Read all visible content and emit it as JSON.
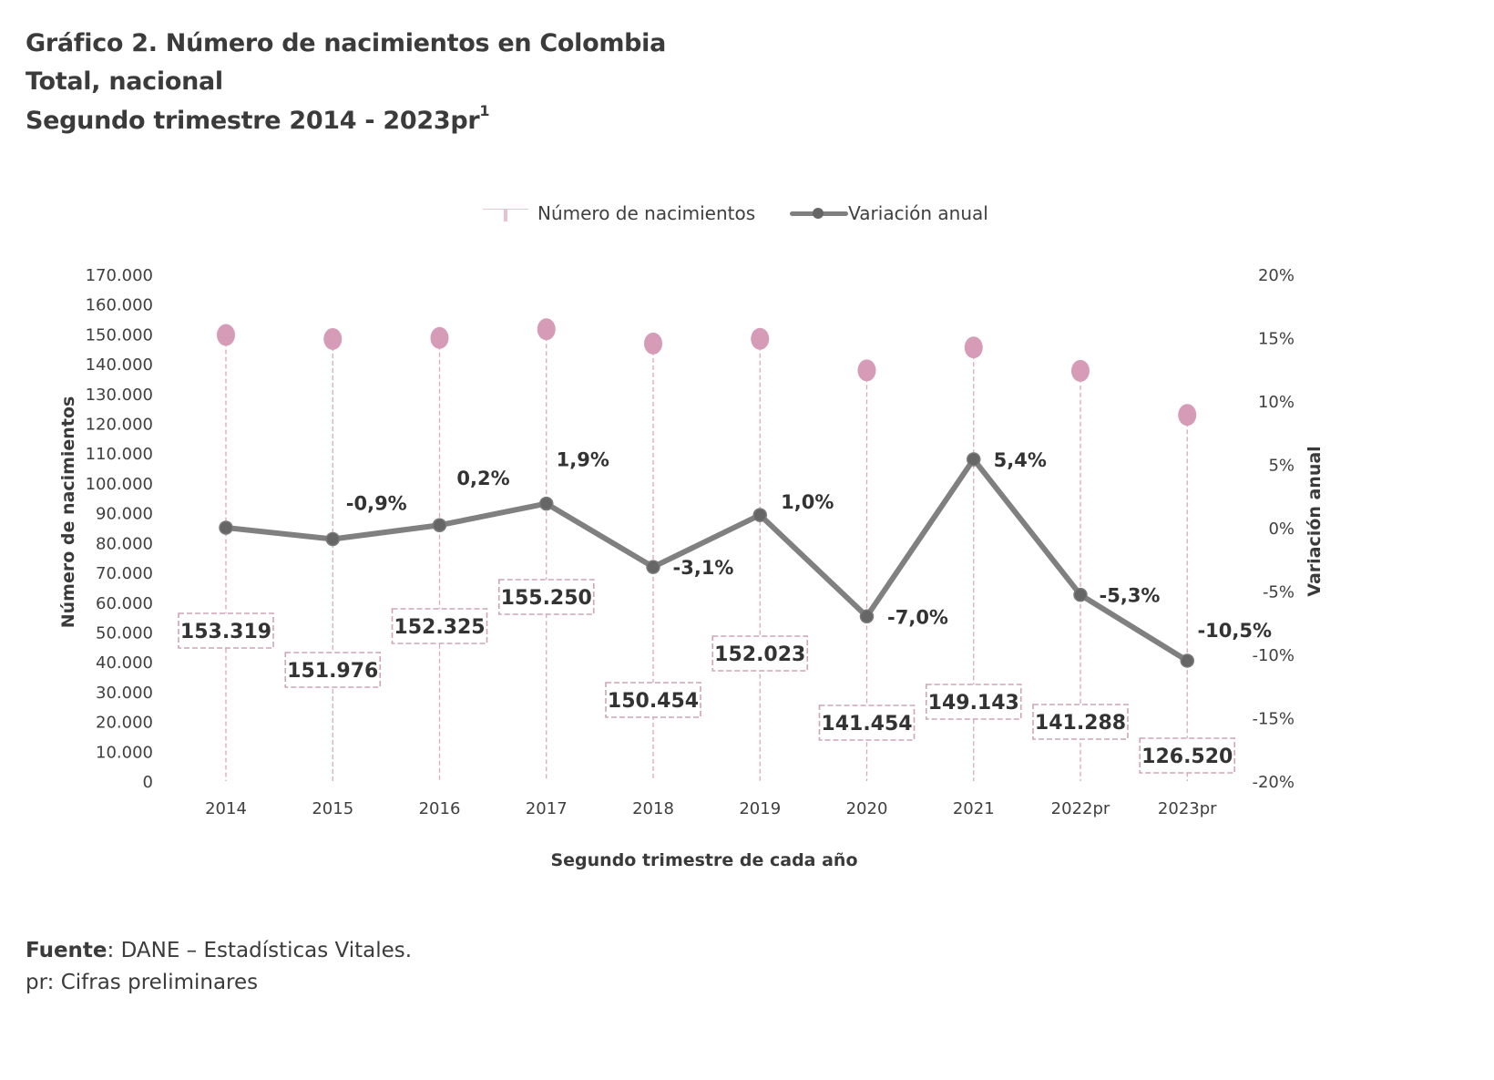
{
  "header": {
    "title_line1": "Gráfico 2. Número de nacimientos en Colombia",
    "title_line2": "Total, nacional",
    "title_line3": "Segundo trimestre 2014 - 2023pr",
    "title_line3_sup": "1"
  },
  "legend": {
    "series1": "Número de nacimientos",
    "series2": "Variación anual"
  },
  "footer": {
    "source_label": "Fuente",
    "source_text": ": DANE – Estadísticas Vitales.",
    "note": "pr: Cifras preliminares"
  },
  "colors": {
    "births": "#d69bb6",
    "births_stem": "#d9a8be",
    "variation_line": "#808080",
    "variation_marker": "#666666",
    "text": "#3a3a3a"
  },
  "chart_data": {
    "type": "bar",
    "subtype": "lollipop + line (dual axis)",
    "title": "Gráfico 2. Número de nacimientos en Colombia — Total, nacional — Segundo trimestre 2014 - 2023pr",
    "xlabel": "Segundo trimestre de cada año",
    "ylabel": "Número de nacimientos",
    "y2label": "Variación anual",
    "categories": [
      "2014",
      "2015",
      "2016",
      "2017",
      "2018",
      "2019",
      "2020",
      "2021",
      "2022pr",
      "2023pr"
    ],
    "series": [
      {
        "name": "Número de nacimientos",
        "axis": "left",
        "values": [
          153319,
          151976,
          152325,
          155250,
          150454,
          152023,
          141454,
          149143,
          141288,
          126520
        ],
        "labels": [
          "153.319",
          "151.976",
          "152.325",
          "155.250",
          "150.454",
          "152.023",
          "141.454",
          "149.143",
          "141.288",
          "126.520"
        ]
      },
      {
        "name": "Variación anual",
        "axis": "right",
        "values": [
          0.0,
          -0.9,
          0.2,
          1.9,
          -3.1,
          1.0,
          -7.0,
          5.4,
          -5.3,
          -10.5
        ],
        "labels": [
          "",
          "-0,9%",
          "0,2%",
          "1,9%",
          "-3,1%",
          "1,0%",
          "-7,0%",
          "5,4%",
          "-5,3%",
          "-10,5%"
        ]
      }
    ],
    "ylim": [
      0,
      170000
    ],
    "yticks": [
      0,
      10000,
      20000,
      30000,
      40000,
      50000,
      60000,
      70000,
      80000,
      90000,
      100000,
      110000,
      120000,
      130000,
      140000,
      150000,
      160000,
      170000
    ],
    "ytick_labels": [
      "0",
      "10.000",
      "20.000",
      "30.000",
      "40.000",
      "50.000",
      "60.000",
      "70.000",
      "80.000",
      "90.000",
      "100.000",
      "110.000",
      "120.000",
      "130.000",
      "140.000",
      "150.000",
      "160.000",
      "170.000"
    ],
    "y2lim": [
      -20,
      20
    ],
    "y2ticks": [
      -20,
      -15,
      -10,
      -5,
      0,
      5,
      10,
      15,
      20
    ],
    "y2tick_labels": [
      "-20%",
      "-15%",
      "-10%",
      "-5%",
      "0%",
      "5%",
      "10%",
      "15%",
      "20%"
    ],
    "grid": false,
    "legend_position": "top-center"
  }
}
